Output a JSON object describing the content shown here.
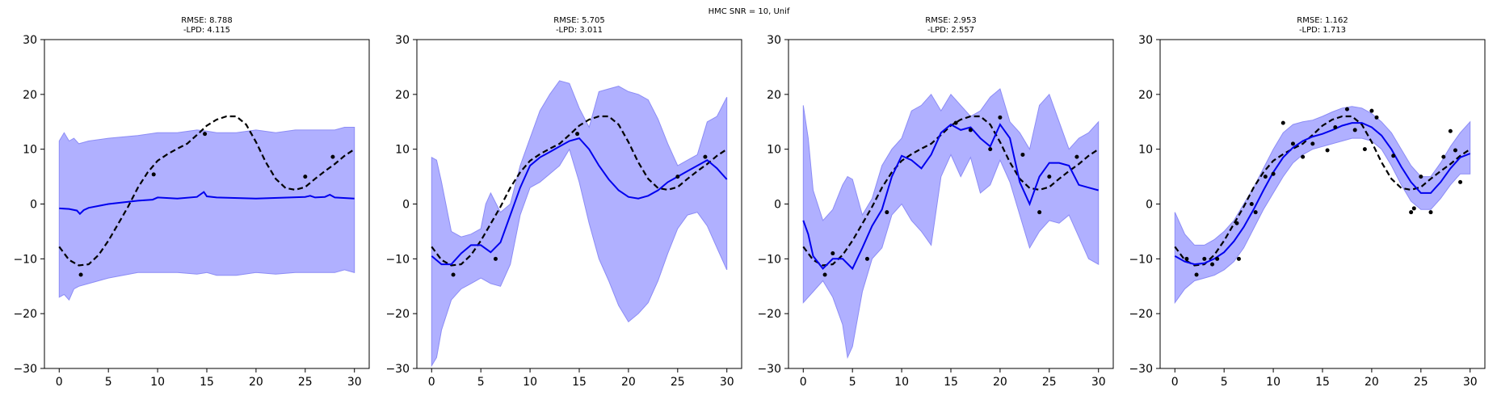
{
  "suptitle": "HMC SNR = 10, Unif",
  "colors": {
    "band": "#b0b0ff",
    "band_edge": "#8c8cf5",
    "mean": "#0000ee",
    "truth": "#000000",
    "points": "#000000"
  },
  "chart_data": [
    {
      "type": "line",
      "title_line1": "RMSE: 8.788",
      "title_line2": "-LPD: 4.115",
      "xlim": [
        -1.5,
        31.5
      ],
      "ylim": [
        -30,
        30
      ],
      "xticks": [
        0,
        5,
        10,
        15,
        20,
        25,
        30
      ],
      "yticks": [
        -30,
        -20,
        -10,
        0,
        10,
        20,
        30
      ],
      "true_function": {
        "x": [
          0,
          1,
          2,
          3,
          4,
          5,
          6,
          7,
          8,
          9,
          10,
          11,
          12,
          13,
          14,
          15,
          16,
          17,
          18,
          19,
          20,
          21,
          22,
          23,
          24,
          25,
          26,
          27,
          28,
          29,
          30
        ],
        "y": [
          -7.8,
          -10.2,
          -11.2,
          -11.0,
          -9.3,
          -6.7,
          -3.6,
          -0.5,
          3.0,
          5.8,
          7.9,
          9.1,
          10.1,
          11.0,
          12.6,
          14.3,
          15.4,
          16.0,
          16.0,
          14.5,
          11.3,
          7.6,
          4.6,
          2.9,
          2.6,
          3.1,
          4.6,
          6.0,
          7.3,
          8.8,
          10.0
        ]
      },
      "posterior_mean": {
        "x": [
          0,
          1,
          1.8,
          2.1,
          2.5,
          3,
          5,
          8,
          9.5,
          10,
          12,
          14,
          14.7,
          15,
          16,
          20,
          25,
          25.5,
          26,
          27,
          27.5,
          28,
          30
        ],
        "y": [
          -0.8,
          -0.9,
          -1.2,
          -1.8,
          -1.1,
          -0.7,
          0.0,
          0.6,
          0.8,
          1.2,
          1.0,
          1.3,
          2.2,
          1.4,
          1.2,
          1.0,
          1.3,
          1.5,
          1.2,
          1.3,
          1.7,
          1.2,
          1.0
        ]
      },
      "band_upper": {
        "x": [
          0,
          0.5,
          1,
          1.5,
          2,
          3,
          5,
          8,
          10,
          12,
          14,
          15,
          16,
          18,
          20,
          22,
          24,
          26,
          28,
          29,
          30
        ],
        "y": [
          11.5,
          13.0,
          11.5,
          12.0,
          11.0,
          11.5,
          12.0,
          12.5,
          13.0,
          13.0,
          13.5,
          13.3,
          13.0,
          13.0,
          13.5,
          13.0,
          13.5,
          13.5,
          13.5,
          14.0,
          14.0
        ]
      },
      "band_lower": {
        "x": [
          0,
          0.5,
          1,
          1.5,
          2,
          3,
          5,
          8,
          10,
          12,
          14,
          15,
          16,
          18,
          20,
          22,
          24,
          26,
          28,
          29,
          30
        ],
        "y": [
          -17.0,
          -16.5,
          -17.5,
          -15.5,
          -15.0,
          -14.5,
          -13.5,
          -12.5,
          -12.5,
          -12.5,
          -12.8,
          -12.5,
          -13.0,
          -13.0,
          -12.5,
          -12.8,
          -12.5,
          -12.5,
          -12.5,
          -12.0,
          -12.5
        ]
      },
      "observations": {
        "x": [
          2.2,
          9.6,
          14.8,
          25.0,
          27.8
        ],
        "y": [
          -12.9,
          5.4,
          12.8,
          5.0,
          8.6
        ]
      }
    },
    {
      "type": "line",
      "title_line1": "RMSE: 5.705",
      "title_line2": "-LPD: 3.011",
      "xlim": [
        -1.5,
        31.5
      ],
      "ylim": [
        -30,
        30
      ],
      "xticks": [
        0,
        5,
        10,
        15,
        20,
        25,
        30
      ],
      "yticks": [
        -30,
        -20,
        -10,
        0,
        10,
        20,
        30
      ],
      "true_function": {
        "x": [
          0,
          1,
          2,
          3,
          4,
          5,
          6,
          7,
          8,
          9,
          10,
          11,
          12,
          13,
          14,
          15,
          16,
          17,
          18,
          19,
          20,
          21,
          22,
          23,
          24,
          25,
          26,
          27,
          28,
          29,
          30
        ],
        "y": [
          -7.8,
          -10.2,
          -11.2,
          -11.0,
          -9.3,
          -6.7,
          -3.6,
          -0.5,
          3.0,
          5.8,
          7.9,
          9.1,
          10.1,
          11.0,
          12.6,
          14.3,
          15.4,
          16.0,
          16.0,
          14.5,
          11.3,
          7.6,
          4.6,
          2.9,
          2.6,
          3.1,
          4.6,
          6.0,
          7.3,
          8.8,
          10.0
        ]
      },
      "posterior_mean": {
        "x": [
          0,
          1,
          2,
          3,
          4,
          5,
          6,
          7,
          8,
          9,
          10,
          11,
          12,
          13,
          14,
          15,
          16,
          17,
          18,
          19,
          20,
          21,
          22,
          23,
          24,
          25,
          26,
          27,
          28,
          29,
          30
        ],
        "y": [
          -9.5,
          -11.0,
          -11.0,
          -9.0,
          -7.5,
          -7.5,
          -8.8,
          -7.0,
          -2.0,
          3.0,
          7.0,
          8.5,
          9.5,
          10.5,
          11.5,
          12.0,
          10.0,
          7.0,
          4.5,
          2.5,
          1.3,
          1.0,
          1.5,
          2.5,
          4.0,
          5.0,
          6.0,
          7.0,
          8.0,
          6.5,
          4.5
        ]
      },
      "band_upper": {
        "x": [
          0,
          0.5,
          1,
          2,
          3,
          4,
          5,
          5.5,
          6,
          7,
          8,
          9,
          10,
          11,
          12,
          13,
          14,
          15,
          16,
          17,
          18,
          19,
          20,
          21,
          22,
          23,
          24,
          25,
          26,
          27,
          28,
          29,
          30
        ],
        "y": [
          8.5,
          8.0,
          4.0,
          -5.0,
          -6.0,
          -5.5,
          -4.5,
          0.0,
          2.0,
          -1.5,
          0.0,
          7.0,
          12.0,
          17.0,
          20.0,
          22.5,
          22.0,
          17.5,
          14.0,
          20.5,
          21.0,
          21.5,
          20.5,
          20.0,
          19.0,
          15.5,
          11.0,
          7.0,
          8.0,
          9.0,
          15.0,
          16.0,
          19.5
        ]
      },
      "band_lower": {
        "x": [
          0,
          0.5,
          1,
          2,
          3,
          4,
          5,
          6,
          7,
          8,
          9,
          10,
          11,
          12,
          13,
          14,
          15,
          16,
          17,
          18,
          19,
          20,
          21,
          22,
          23,
          24,
          25,
          26,
          27,
          28,
          29,
          30
        ],
        "y": [
          -29.5,
          -28.0,
          -23.0,
          -17.5,
          -15.5,
          -14.5,
          -13.5,
          -14.5,
          -15.0,
          -11.0,
          -2.0,
          3.0,
          4.0,
          5.5,
          7.0,
          10.0,
          4.0,
          -3.5,
          -10.0,
          -14.0,
          -18.5,
          -21.5,
          -20.0,
          -18.0,
          -14.0,
          -9.0,
          -4.5,
          -2.0,
          -1.5,
          -4.0,
          -8.0,
          -12.0
        ]
      },
      "observations": {
        "x": [
          2.2,
          6.5,
          14.8,
          25.0,
          27.8
        ],
        "y": [
          -12.9,
          -10.0,
          12.8,
          5.0,
          8.6
        ]
      }
    },
    {
      "type": "line",
      "title_line1": "RMSE: 2.953",
      "title_line2": "-LPD: 2.557",
      "xlim": [
        -1.5,
        31.5
      ],
      "ylim": [
        -30,
        30
      ],
      "xticks": [
        0,
        5,
        10,
        15,
        20,
        25,
        30
      ],
      "yticks": [
        -30,
        -20,
        -10,
        0,
        10,
        20,
        30
      ],
      "true_function": {
        "x": [
          0,
          1,
          2,
          3,
          4,
          5,
          6,
          7,
          8,
          9,
          10,
          11,
          12,
          13,
          14,
          15,
          16,
          17,
          18,
          19,
          20,
          21,
          22,
          23,
          24,
          25,
          26,
          27,
          28,
          29,
          30
        ],
        "y": [
          -7.8,
          -10.2,
          -11.2,
          -11.0,
          -9.3,
          -6.7,
          -3.6,
          -0.5,
          3.0,
          5.8,
          7.9,
          9.1,
          10.1,
          11.0,
          12.6,
          14.3,
          15.4,
          16.0,
          16.0,
          14.5,
          11.3,
          7.6,
          4.6,
          2.9,
          2.6,
          3.1,
          4.6,
          6.0,
          7.3,
          8.8,
          10.0
        ]
      },
      "posterior_mean": {
        "x": [
          0,
          0.5,
          1,
          2,
          3,
          4,
          5,
          6,
          7,
          8,
          9,
          10,
          11,
          12,
          13,
          14,
          15,
          16,
          17,
          18,
          19,
          20,
          21,
          22,
          23,
          24,
          25,
          26,
          27,
          28,
          29,
          30
        ],
        "y": [
          -3.0,
          -5.5,
          -9.5,
          -11.8,
          -10.0,
          -10.0,
          -11.8,
          -8.0,
          -4.0,
          -1.0,
          5.0,
          8.8,
          8.0,
          6.5,
          9.0,
          13.0,
          14.5,
          13.5,
          14.0,
          12.0,
          10.5,
          14.5,
          12.0,
          4.0,
          0.0,
          5.0,
          7.5,
          7.5,
          7.0,
          3.5,
          3.0,
          2.5
        ]
      },
      "band_upper": {
        "x": [
          0,
          0.5,
          1,
          2,
          3,
          4,
          4.5,
          5,
          6,
          7,
          8,
          9,
          10,
          11,
          12,
          13,
          14,
          15,
          16,
          17,
          18,
          19,
          20,
          21,
          22,
          23,
          24,
          25,
          26,
          27,
          28,
          29,
          30
        ],
        "y": [
          18.0,
          12.0,
          2.5,
          -3.0,
          -1.0,
          3.5,
          5.0,
          4.5,
          -2.0,
          1.0,
          7.0,
          10.0,
          12.0,
          17.0,
          18.0,
          20.0,
          17.0,
          20.0,
          18.0,
          16.0,
          17.0,
          19.5,
          21.0,
          15.0,
          13.0,
          10.0,
          18.0,
          20.0,
          15.0,
          10.0,
          12.0,
          13.0,
          15.0
        ]
      },
      "band_lower": {
        "x": [
          0,
          0.5,
          1,
          2,
          3,
          4,
          4.5,
          5,
          6,
          7,
          8,
          9,
          10,
          11,
          12,
          13,
          14,
          15,
          16,
          17,
          18,
          19,
          20,
          21,
          22,
          23,
          24,
          25,
          26,
          27,
          28,
          29,
          30
        ],
        "y": [
          -18.0,
          -17.0,
          -16.0,
          -14.0,
          -17.0,
          -22.0,
          -28.0,
          -26.0,
          -16.0,
          -10.0,
          -8.0,
          -2.0,
          0.0,
          -3.0,
          -5.0,
          -7.5,
          5.0,
          9.0,
          5.0,
          8.5,
          2.0,
          3.5,
          8.0,
          4.0,
          -2.0,
          -8.0,
          -5.0,
          -3.0,
          -3.5,
          -2.0,
          -6.0,
          -10.0,
          -11.0
        ]
      },
      "observations": {
        "x": [
          2.2,
          3.0,
          6.5,
          8.5,
          15.5,
          17.0,
          19.0,
          20.0,
          22.3,
          24.0,
          25.0,
          27.8
        ],
        "y": [
          -12.9,
          -9.0,
          -10.0,
          -1.5,
          14.8,
          13.5,
          10.0,
          15.8,
          9.0,
          -1.5,
          5.0,
          8.6
        ]
      }
    },
    {
      "type": "line",
      "title_line1": "RMSE: 1.162",
      "title_line2": "-LPD: 1.713",
      "xlim": [
        -1.5,
        31.5
      ],
      "ylim": [
        -30,
        30
      ],
      "xticks": [
        0,
        5,
        10,
        15,
        20,
        25,
        30
      ],
      "yticks": [
        -30,
        -20,
        -10,
        0,
        10,
        20,
        30
      ],
      "true_function": {
        "x": [
          0,
          1,
          2,
          3,
          4,
          5,
          6,
          7,
          8,
          9,
          10,
          11,
          12,
          13,
          14,
          15,
          16,
          17,
          18,
          19,
          20,
          21,
          22,
          23,
          24,
          25,
          26,
          27,
          28,
          29,
          30
        ],
        "y": [
          -7.8,
          -10.2,
          -11.2,
          -11.0,
          -9.3,
          -6.7,
          -3.6,
          -0.5,
          3.0,
          5.8,
          7.9,
          9.1,
          10.1,
          11.0,
          12.6,
          14.3,
          15.4,
          16.0,
          16.0,
          14.5,
          11.3,
          7.6,
          4.6,
          2.9,
          2.6,
          3.1,
          4.6,
          6.0,
          7.3,
          8.8,
          10.0
        ]
      },
      "posterior_mean": {
        "x": [
          0,
          1,
          2,
          3,
          4,
          5,
          6,
          7,
          8,
          9,
          10,
          11,
          12,
          13,
          14,
          15,
          16,
          17,
          18,
          19,
          20,
          21,
          22,
          23,
          24,
          25,
          26,
          27,
          28,
          29,
          30
        ],
        "y": [
          -9.5,
          -10.5,
          -11.0,
          -10.8,
          -10.0,
          -8.8,
          -6.8,
          -4.2,
          -1.0,
          2.5,
          5.8,
          8.5,
          10.3,
          11.5,
          12.3,
          12.8,
          13.5,
          14.3,
          14.8,
          14.8,
          14.0,
          12.5,
          10.0,
          6.8,
          4.0,
          2.0,
          2.0,
          4.0,
          6.5,
          8.5,
          9.2
        ]
      },
      "band_upper": {
        "x": [
          0,
          1,
          2,
          3,
          4,
          5,
          6,
          7,
          8,
          9,
          10,
          11,
          12,
          13,
          14,
          15,
          16,
          17,
          18,
          19,
          20,
          21,
          22,
          23,
          24,
          25,
          26,
          27,
          28,
          29,
          30
        ],
        "y": [
          -1.5,
          -5.5,
          -7.5,
          -7.5,
          -6.5,
          -5.0,
          -3.0,
          0.0,
          3.0,
          6.5,
          10.0,
          13.0,
          14.5,
          15.0,
          15.3,
          16.0,
          16.8,
          17.5,
          17.8,
          17.5,
          16.5,
          15.0,
          13.0,
          10.0,
          7.0,
          5.0,
          5.0,
          7.5,
          10.5,
          13.0,
          15.0
        ]
      },
      "band_lower": {
        "x": [
          0,
          1,
          2,
          3,
          4,
          5,
          6,
          7,
          8,
          9,
          10,
          11,
          12,
          13,
          14,
          15,
          16,
          17,
          18,
          19,
          20,
          21,
          22,
          23,
          24,
          25,
          26,
          27,
          28,
          29,
          30
        ],
        "y": [
          -18.0,
          -15.5,
          -14.0,
          -13.5,
          -13.0,
          -12.0,
          -10.5,
          -8.0,
          -4.5,
          -1.0,
          2.0,
          5.0,
          7.5,
          9.0,
          10.0,
          10.5,
          11.0,
          11.5,
          12.0,
          12.0,
          11.5,
          10.0,
          7.0,
          3.5,
          0.5,
          -1.0,
          -1.0,
          1.0,
          3.5,
          5.5,
          5.5
        ]
      },
      "observations": {
        "x": [
          1.2,
          2.2,
          3.0,
          3.8,
          4.3,
          6.3,
          6.5,
          7.8,
          8.2,
          9.2,
          10.0,
          11.0,
          12.0,
          13.0,
          14.0,
          15.5,
          16.3,
          17.5,
          18.3,
          19.3,
          20.0,
          20.5,
          22.2,
          24.0,
          24.3,
          25.0,
          26.0,
          27.3,
          28.0,
          28.5,
          29.0
        ],
        "y": [
          -10.0,
          -12.9,
          -10.0,
          -11.0,
          -10.0,
          -3.5,
          -10.0,
          0.0,
          -1.5,
          5.0,
          5.5,
          14.8,
          11.0,
          8.6,
          11.0,
          9.8,
          14.0,
          17.3,
          13.5,
          10.0,
          17.0,
          15.8,
          8.8,
          -1.5,
          -0.8,
          5.0,
          -1.5,
          8.6,
          13.3,
          9.8,
          4.0
        ]
      }
    }
  ]
}
